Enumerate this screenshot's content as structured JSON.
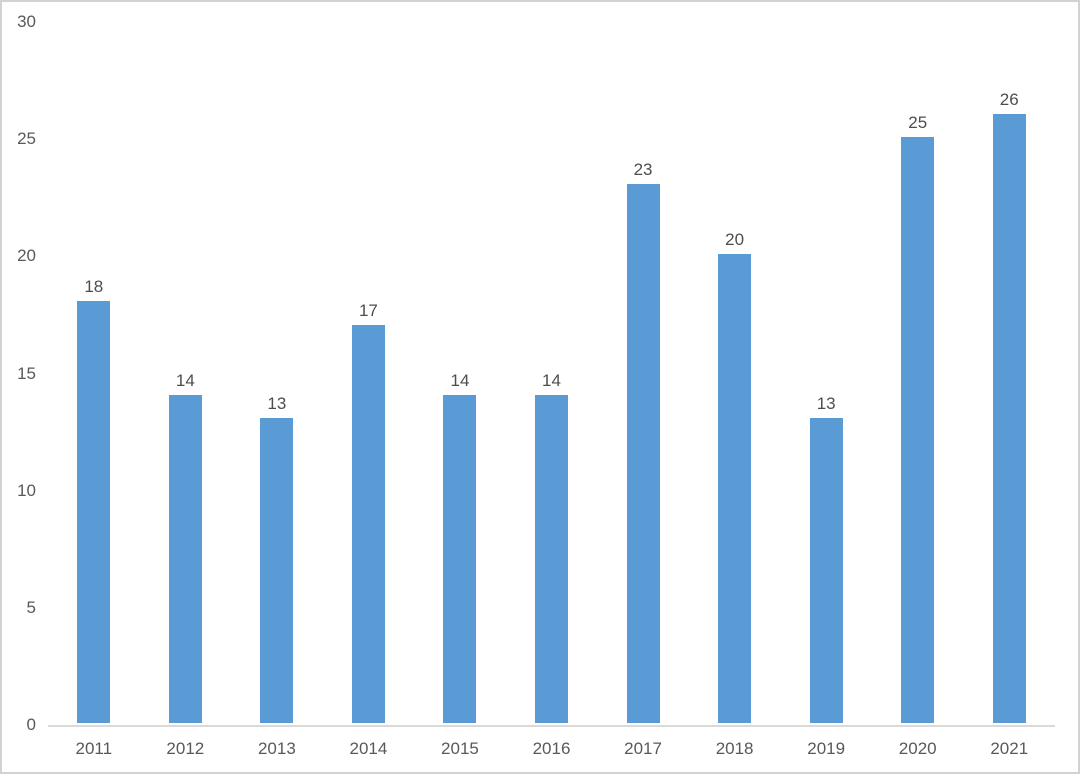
{
  "chart_data": {
    "type": "bar",
    "title": "",
    "xlabel": "",
    "ylabel": "",
    "categories": [
      "2011",
      "2012",
      "2013",
      "2014",
      "2015",
      "2016",
      "2017",
      "2018",
      "2019",
      "2020",
      "2021"
    ],
    "values": [
      18,
      14,
      13,
      17,
      14,
      14,
      23,
      20,
      13,
      25,
      26
    ],
    "ylim": [
      0,
      30
    ],
    "yticks": [
      0,
      5,
      10,
      15,
      20,
      25,
      30
    ],
    "grid": false,
    "legend": "none",
    "data_labels": true,
    "bar_color": "#5b9bd5",
    "axis_label_color": "#595959",
    "data_label_color": "#4d4d4d",
    "axis_line_color": "#d9d9d9",
    "background_color": "#ffffff",
    "border_color": "#d2d2d2"
  }
}
